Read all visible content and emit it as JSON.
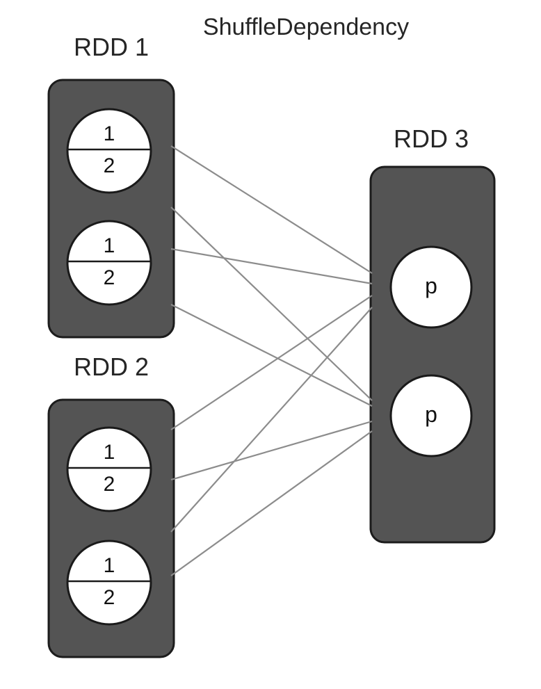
{
  "title": "ShuffleDependency",
  "rdd1": {
    "label": "RDD 1",
    "partitions": [
      {
        "top": "1",
        "bottom": "2"
      },
      {
        "top": "1",
        "bottom": "2"
      }
    ]
  },
  "rdd2": {
    "label": "RDD 2",
    "partitions": [
      {
        "top": "1",
        "bottom": "2"
      },
      {
        "top": "1",
        "bottom": "2"
      }
    ]
  },
  "rdd3": {
    "label": "RDD 3",
    "partitions": [
      {
        "label": "p"
      },
      {
        "label": "p"
      }
    ]
  },
  "colors": {
    "box": "#545454",
    "edge": "#8c8c8c",
    "circle": "#ffffff"
  }
}
